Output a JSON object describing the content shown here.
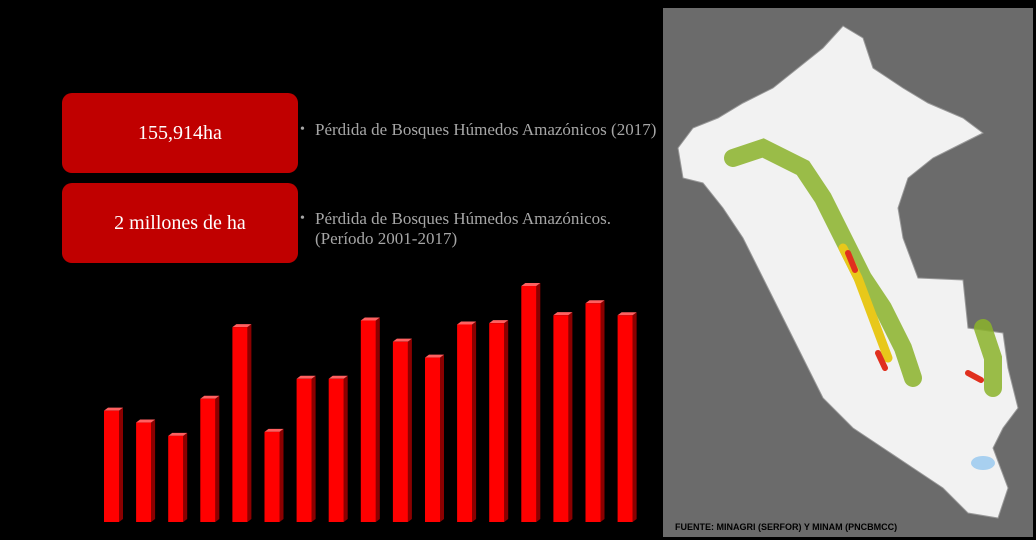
{
  "chart_data": {
    "type": "bar",
    "categories": [
      null,
      null,
      null,
      null,
      null,
      null,
      null,
      null,
      null,
      null,
      null,
      null,
      null,
      null,
      null,
      null,
      null
    ],
    "values": [
      84000,
      75000,
      65000,
      93000,
      147000,
      68000,
      108000,
      108000,
      152000,
      136000,
      124000,
      149000,
      150000,
      178000,
      156000,
      165000,
      155914
    ],
    "color": "#ff0000"
  },
  "callouts": [
    {
      "value": "155,914ha",
      "text": "Pérdida de Bosques Húmedos Amazónicos (2017)"
    },
    {
      "value": "2 millones de ha",
      "text": "Pérdida de Bosques Húmedos Amazónicos. (Período 2001-2017)"
    }
  ],
  "map": {
    "source": "FUENTE: MINAGRI (SERFOR) Y MINAM (PNCBMCC)"
  }
}
